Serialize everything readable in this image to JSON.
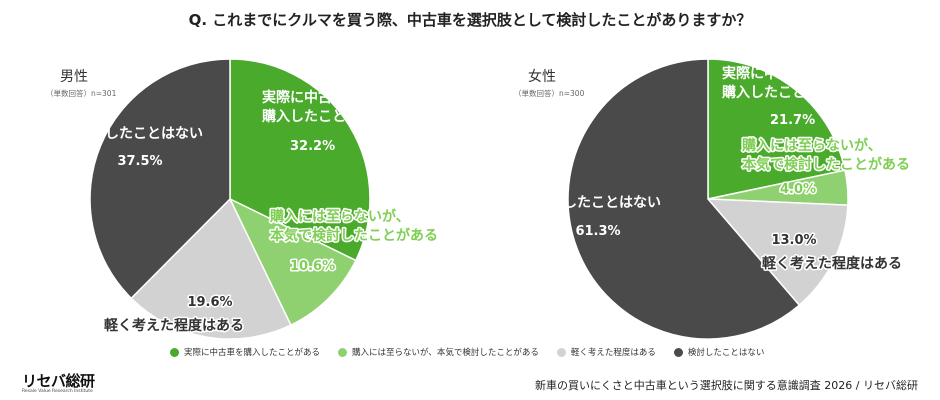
{
  "question": "Q. これまでにクルマを買う際、中古車を選択肢として検討したことがありますか？",
  "colors": {
    "dark_green": "#4aaa2c",
    "light_green": "#8fd070",
    "light_gray": "#d2d2d2",
    "dark_gray": "#4a4a4a"
  },
  "chart_data": [
    {
      "type": "pie",
      "title": "男性",
      "subtitle": "（単数回答）n=301",
      "slices": [
        {
          "label_lines": [
            "実際に中古車を",
            "購入したことがある"
          ],
          "value": 32.2,
          "pct": "32.2%"
        },
        {
          "label_lines": [
            "購入には至らないが、",
            "本気で検討したことがある"
          ],
          "value": 10.6,
          "pct": "10.6%"
        },
        {
          "label_lines": [
            "軽く考えた程度はある"
          ],
          "value": 19.6,
          "pct": "19.6%"
        },
        {
          "label_lines": [
            "検討したことはない"
          ],
          "value": 37.5,
          "pct": "37.5%"
        }
      ]
    },
    {
      "type": "pie",
      "title": "女性",
      "subtitle": "（単数回答）n=300",
      "slices": [
        {
          "label_lines": [
            "実際に中古車を",
            "購入したことがある"
          ],
          "value": 21.7,
          "pct": "21.7%"
        },
        {
          "label_lines": [
            "購入には至らないが、",
            "本気で検討したことがある"
          ],
          "value": 4.0,
          "pct": "4.0%"
        },
        {
          "label_lines": [
            "軽く考えた程度はある"
          ],
          "value": 13.0,
          "pct": "13.0%"
        },
        {
          "label_lines": [
            "検討したことはない"
          ],
          "value": 61.3,
          "pct": "61.3%"
        }
      ]
    }
  ],
  "legend": [
    "実際に中古車を購入したことがある",
    "購入には至らないが、本気で検討したことがある",
    "軽く考えた程度はある",
    "検討したことはない"
  ],
  "logo": "リセバ総研",
  "logo_sub": "Resale Value Research Institute",
  "footer": "新車の買いにくさと中古車という選択肢に関する意識調査 2026 / リセバ総研"
}
